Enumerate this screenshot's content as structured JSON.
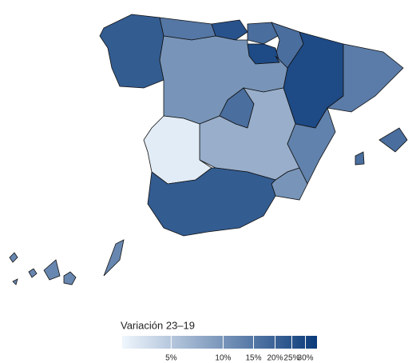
{
  "chart_data": {
    "type": "choropleth",
    "values": [
      22,
      15,
      25,
      17,
      17,
      28,
      28,
      14,
      10,
      17,
      7,
      3,
      13,
      10,
      22,
      17,
      12
    ],
    "legend_title": "Variación 23–19",
    "colors": [
      "#eff6fd",
      "#0a3a7a"
    ],
    "scale": "log",
    "lim": [
      2.6,
      35
    ],
    "ticks": [
      {
        "value": 5,
        "label": "5%"
      },
      {
        "value": 10,
        "label": "10%"
      },
      {
        "value": 15,
        "label": "15%"
      },
      {
        "value": 20,
        "label": "20%"
      },
      {
        "value": 25,
        "label": "25%"
      },
      {
        "value": 30,
        "label": "30%"
      }
    ]
  }
}
